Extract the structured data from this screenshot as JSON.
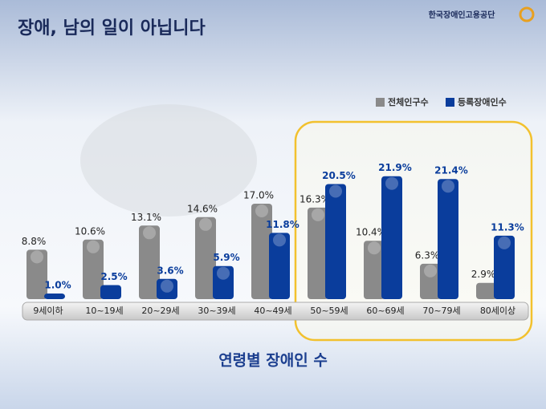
{
  "header": {
    "title": "장애, 남의 일이 아닙니다",
    "logo": "한국장애인고용공단"
  },
  "chart_data": {
    "type": "bar",
    "title": "연령별 장애인 수",
    "categories": [
      "9세이하",
      "10~19세",
      "20~29세",
      "30~39세",
      "40~49세",
      "50~59세",
      "60~69세",
      "70~79세",
      "80세이상"
    ],
    "series": [
      {
        "name": "전체인구수",
        "color": "#8a8a8a",
        "values": [
          8.8,
          10.6,
          13.1,
          14.6,
          17.0,
          16.3,
          10.4,
          6.3,
          2.9
        ],
        "value_labels": [
          "8.8%",
          "10.6%",
          "13.1%",
          "14.6%",
          "17.0%",
          "16.3%",
          "10.4%",
          "6.3%",
          "2.9%"
        ]
      },
      {
        "name": "등록장애인수",
        "color": "#0a3d9c",
        "values": [
          1.0,
          2.5,
          3.6,
          5.9,
          11.8,
          20.5,
          21.9,
          21.4,
          11.3
        ],
        "value_labels": [
          "1.0%",
          "2.5%",
          "3.6%",
          "5.9%",
          "11.8%",
          "20.5%",
          "21.9%",
          "21.4%",
          "11.3%"
        ]
      }
    ],
    "legend": "top-right"
  }
}
